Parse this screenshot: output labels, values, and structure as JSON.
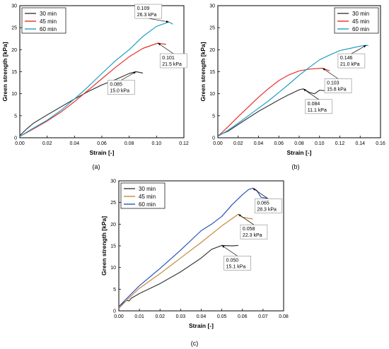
{
  "chart_data": [
    {
      "panel_label": "(a)",
      "type": "line",
      "xlabel": "Strain [-]",
      "ylabel": "Green strength [kPa]",
      "xlim": [
        0,
        0.12
      ],
      "ylim": [
        0,
        30
      ],
      "xticks": [
        "0.00",
        "0.02",
        "0.04",
        "0.06",
        "0.08",
        "0.10",
        "0.12"
      ],
      "yticks": [
        "0",
        "5",
        "10",
        "15",
        "20",
        "25",
        "30"
      ],
      "legend_position": "top-left",
      "series": [
        {
          "name": "30 min",
          "color": "#3a3a3a",
          "x": [
            0,
            0.005,
            0.01,
            0.02,
            0.03,
            0.04,
            0.05,
            0.06,
            0.07,
            0.08,
            0.085,
            0.09
          ],
          "y": [
            0.5,
            2.0,
            3.3,
            5.2,
            7.0,
            8.8,
            10.5,
            12.0,
            13.2,
            14.6,
            15.0,
            14.7
          ]
        },
        {
          "name": "45 min",
          "color": "#e8302a",
          "x": [
            0,
            0.01,
            0.02,
            0.03,
            0.04,
            0.05,
            0.06,
            0.07,
            0.08,
            0.09,
            0.101,
            0.107
          ],
          "y": [
            0.3,
            2.0,
            3.8,
            5.8,
            8.2,
            10.8,
            13.4,
            16.0,
            18.4,
            20.3,
            21.5,
            21.2
          ]
        },
        {
          "name": "60 min",
          "color": "#1f9fc4",
          "x": [
            0,
            0.01,
            0.02,
            0.03,
            0.04,
            0.05,
            0.06,
            0.07,
            0.08,
            0.09,
            0.1,
            0.109,
            0.112
          ],
          "y": [
            0.3,
            2.2,
            4.0,
            6.2,
            8.8,
            11.6,
            14.6,
            17.5,
            20.0,
            23.0,
            25.3,
            26.3,
            25.8
          ]
        }
      ],
      "annotations": [
        {
          "x": 0.109,
          "y": 26.3,
          "lines": [
            "0.109",
            "26.3 kPa"
          ],
          "anchor": "upper-left"
        },
        {
          "x": 0.101,
          "y": 21.5,
          "lines": [
            "0.101",
            "21.5 kPa"
          ],
          "anchor": "lower-right"
        },
        {
          "x": 0.085,
          "y": 15.0,
          "lines": [
            "0.085",
            "15.0 kPa"
          ],
          "anchor": "lower-left"
        }
      ]
    },
    {
      "panel_label": "(b)",
      "type": "line",
      "xlabel": "Strain [-]",
      "ylabel": "Green strength [kPa]",
      "xlim": [
        0,
        0.16
      ],
      "ylim": [
        0,
        30
      ],
      "xticks": [
        "0.00",
        "0.02",
        "0.04",
        "0.06",
        "0.08",
        "0.10",
        "0.12",
        "0.14",
        "0.16"
      ],
      "yticks": [
        "0",
        "5",
        "10",
        "15",
        "20",
        "25",
        "30"
      ],
      "legend_position": "top-right",
      "series": [
        {
          "name": "30 min",
          "color": "#3a3a3a",
          "x": [
            0,
            0.01,
            0.02,
            0.03,
            0.04,
            0.05,
            0.06,
            0.07,
            0.08,
            0.084,
            0.09,
            0.095,
            0.1,
            0.105
          ],
          "y": [
            0.5,
            1.5,
            3.0,
            4.5,
            6.0,
            7.3,
            8.6,
            9.8,
            10.9,
            11.1,
            10.3,
            10.0,
            10.8,
            10.7
          ]
        },
        {
          "name": "45 min",
          "color": "#e8302a",
          "x": [
            0,
            0.01,
            0.02,
            0.03,
            0.04,
            0.05,
            0.06,
            0.07,
            0.08,
            0.09,
            0.103,
            0.11
          ],
          "y": [
            0.3,
            2.5,
            4.8,
            7.0,
            9.2,
            11.2,
            13.0,
            14.3,
            15.2,
            15.6,
            15.8,
            15.2
          ]
        },
        {
          "name": "60 min",
          "color": "#1f9fc4",
          "x": [
            0,
            0.01,
            0.02,
            0.03,
            0.04,
            0.05,
            0.06,
            0.07,
            0.08,
            0.09,
            0.1,
            0.11,
            0.12,
            0.13,
            0.14,
            0.146,
            0.148
          ],
          "y": [
            0.3,
            1.7,
            3.3,
            5.0,
            6.7,
            8.4,
            10.3,
            12.2,
            14.2,
            16.0,
            17.7,
            18.8,
            19.8,
            20.3,
            20.8,
            21.0,
            20.9
          ]
        }
      ],
      "annotations": [
        {
          "x": 0.146,
          "y": 21.0,
          "lines": [
            "0.146",
            "21.0 kPa"
          ],
          "anchor": "lower-left"
        },
        {
          "x": 0.103,
          "y": 15.8,
          "lines": [
            "0.103",
            "15.8 kPa"
          ],
          "anchor": "lower-right"
        },
        {
          "x": 0.084,
          "y": 11.1,
          "lines": [
            "0.084",
            "11.1 kPa"
          ],
          "anchor": "lower-right"
        }
      ]
    },
    {
      "panel_label": "(c)",
      "type": "line",
      "xlabel": "Strain [-]",
      "ylabel": "Green strength [kPa]",
      "xlim": [
        0,
        0.08
      ],
      "ylim": [
        0,
        30
      ],
      "xticks": [
        "0.00",
        "0.01",
        "0.02",
        "0.03",
        "0.04",
        "0.05",
        "0.06",
        "0.07",
        "0.08"
      ],
      "yticks": [
        "0",
        "5",
        "10",
        "15",
        "20",
        "25",
        "30"
      ],
      "legend_position": "top-left",
      "series": [
        {
          "name": "30 min",
          "color": "#3a3a3a",
          "x": [
            0,
            0.002,
            0.004,
            0.005,
            0.006,
            0.01,
            0.02,
            0.03,
            0.04,
            0.045,
            0.05,
            0.055,
            0.058
          ],
          "y": [
            0.5,
            1.8,
            2.4,
            2.3,
            2.9,
            4.0,
            6.3,
            9.0,
            12.2,
            14.2,
            15.1,
            15.0,
            15.1
          ]
        },
        {
          "name": "45 min",
          "color": "#c58a3c",
          "x": [
            0,
            0.005,
            0.01,
            0.02,
            0.03,
            0.04,
            0.05,
            0.058,
            0.06,
            0.065
          ],
          "y": [
            0.6,
            3.0,
            5.2,
            8.6,
            12.2,
            15.8,
            19.6,
            22.3,
            21.6,
            21.2
          ]
        },
        {
          "name": "60 min",
          "color": "#2a52be",
          "x": [
            0,
            0.005,
            0.01,
            0.02,
            0.03,
            0.04,
            0.045,
            0.05,
            0.055,
            0.06,
            0.063,
            0.065,
            0.067,
            0.069,
            0.072
          ],
          "y": [
            1.0,
            3.4,
            5.8,
            9.8,
            14.0,
            18.5,
            20.0,
            21.8,
            24.5,
            26.8,
            28.0,
            28.3,
            27.8,
            26.2,
            26.0
          ]
        }
      ],
      "annotations": [
        {
          "x": 0.065,
          "y": 28.3,
          "lines": [
            "0.065",
            "28.3 kPa"
          ],
          "anchor": "lower-right"
        },
        {
          "x": 0.058,
          "y": 22.3,
          "lines": [
            "0.058",
            "22.3 kPa"
          ],
          "anchor": "lower-right"
        },
        {
          "x": 0.05,
          "y": 15.1,
          "lines": [
            "0.050",
            "15.1 kPa"
          ],
          "anchor": "lower-right"
        }
      ]
    }
  ]
}
